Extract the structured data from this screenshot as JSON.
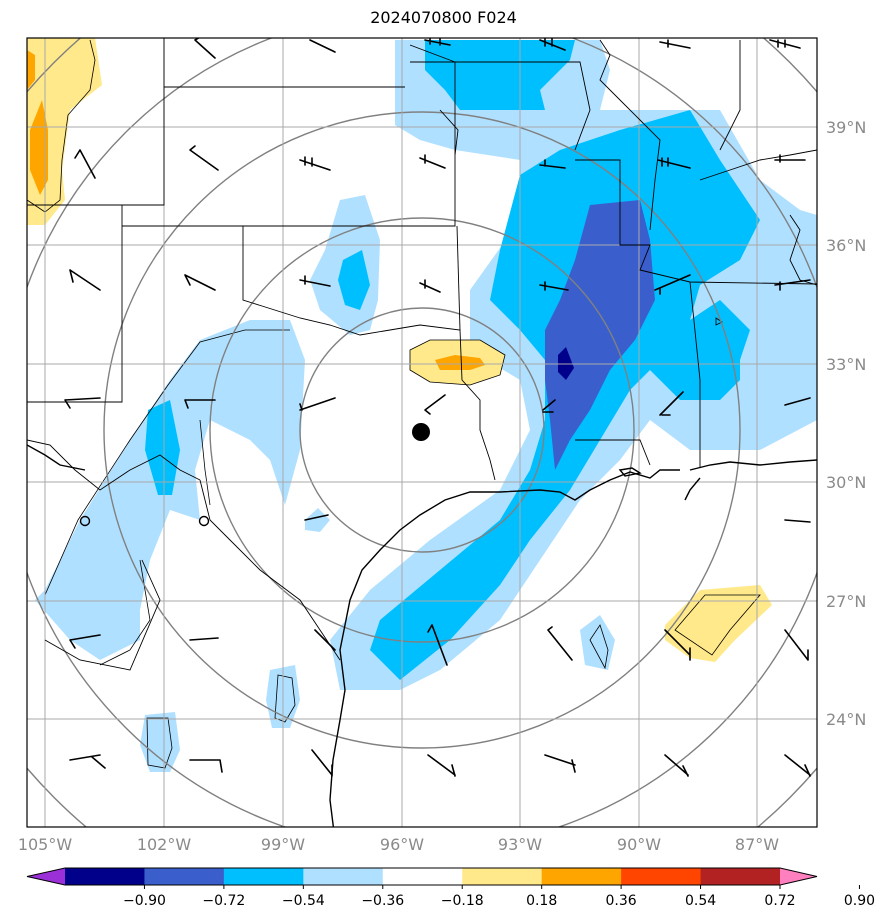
{
  "title": "2024070800 F024",
  "lon_labels": [
    "105°W",
    "102°W",
    "99°W",
    "96°W",
    "93°W",
    "90°W",
    "87°W"
  ],
  "lat_labels": [
    "39°N",
    "36°N",
    "33°N",
    "30°N",
    "27°N",
    "24°N"
  ],
  "colorbar": {
    "ticks": [
      "−0.90",
      "−0.72",
      "−0.54",
      "−0.36",
      "−0.18",
      "0.18",
      "0.36",
      "0.54",
      "0.72",
      "0.90"
    ],
    "colors": [
      "#9b30d9",
      "#00008b",
      "#3a5fcd",
      "#00bfff",
      "#b0e0ff",
      "#ffffff",
      "#ffe98a",
      "#ffa500",
      "#ff4500",
      "#b22222",
      "#ff7fbf"
    ]
  },
  "marker": {
    "name": "center-point",
    "lon": "95.5°W",
    "lat": "31.2°N"
  }
}
